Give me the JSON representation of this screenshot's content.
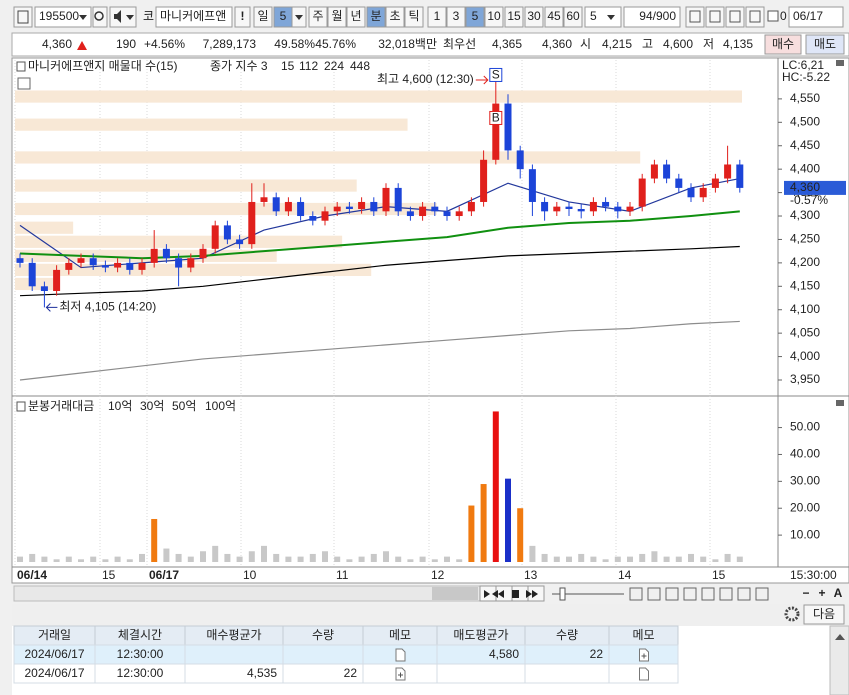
{
  "toolbar": {
    "code": "195500",
    "market": "코",
    "name": "마니커에프앤",
    "alert": "!",
    "period": "일",
    "period_n": "5",
    "units": [
      "주",
      "월",
      "년",
      "분",
      "초",
      "틱"
    ],
    "minutes": [
      "1",
      "3",
      "5",
      "10",
      "15",
      "30",
      "45",
      "60"
    ],
    "custom": "5",
    "count": "94/900",
    "check_label": "0",
    "date": "06/17"
  },
  "quote": {
    "price": "4,360",
    "change": "190",
    "change_pct": "+4.56%",
    "volume": "7,289,173",
    "ratio1": "49.58%",
    "ratio2": "45.76%",
    "amount": "32,018백만",
    "best_label": "최우선",
    "ask": "4,365",
    "bid": "4,360",
    "open_label": "시",
    "open": "4,215",
    "high_label": "고",
    "high": "4,600",
    "low_label": "저",
    "low": "4,135",
    "buy": "매수",
    "sell": "매도"
  },
  "price_chart": {
    "type": "candlestick",
    "legend_title": "마니커에프앤지 매물대 수(15)",
    "index_label": "종가 지수 3",
    "lc": "LC:6,21",
    "hc": "HC:-5.22",
    "last": "4,360",
    "last_change": "-0.57%",
    "high_note": "최고 4,600 (12:30)",
    "low_note": "최저 4,105 (14:20)",
    "sell_marker": "S",
    "buy_marker": "B",
    "ylim": [
      3918,
      4633
    ],
    "yticks": [
      {
        "value": 4550,
        "label": "4,550"
      },
      {
        "value": 4500,
        "label": "4,500"
      },
      {
        "value": 4450,
        "label": "4,450"
      },
      {
        "value": 4400,
        "label": "4,400"
      },
      {
        "value": 4350,
        "label": "4,350"
      },
      {
        "value": 4300,
        "label": "4,300"
      },
      {
        "value": 4250,
        "label": "4,250"
      },
      {
        "value": 4200,
        "label": "4,200"
      },
      {
        "value": 4150,
        "label": "4,150"
      },
      {
        "value": 4100,
        "label": "4,100"
      },
      {
        "value": 4050,
        "label": "4,050"
      },
      {
        "value": 4000,
        "label": "4,000"
      },
      {
        "value": 3950,
        "label": "3,950"
      }
    ],
    "up_color": "#e0201c",
    "down_color": "#1c44d8",
    "open": [
      4210,
      4200,
      4150,
      4140,
      4185,
      4200,
      4210,
      4195,
      4190,
      4200,
      4185,
      4200,
      4230,
      4210,
      4190,
      4210,
      4230,
      4280,
      4250,
      4240,
      4330,
      4340,
      4310,
      4330,
      4300,
      4290,
      4310,
      4320,
      4315,
      4330,
      4310,
      4360,
      4310,
      4300,
      4320,
      4310,
      4300,
      4310,
      4330,
      4420,
      4540,
      4440,
      4400,
      4330,
      4310,
      4320,
      4315,
      4310,
      4330,
      4320,
      4310,
      4320,
      4380,
      4410,
      4380,
      4360,
      4340,
      4360,
      4380,
      4410
    ],
    "high": [
      4220,
      4210,
      4160,
      4195,
      4210,
      4220,
      4220,
      4205,
      4210,
      4210,
      4210,
      4270,
      4240,
      4220,
      4220,
      4240,
      4290,
      4290,
      4260,
      4370,
      4370,
      4350,
      4340,
      4340,
      4310,
      4320,
      4330,
      4330,
      4340,
      4340,
      4370,
      4370,
      4320,
      4330,
      4330,
      4320,
      4320,
      4340,
      4440,
      4600,
      4560,
      4450,
      4410,
      4340,
      4330,
      4330,
      4325,
      4340,
      4340,
      4330,
      4330,
      4390,
      4420,
      4420,
      4390,
      4370,
      4370,
      4390,
      4450,
      4420
    ],
    "low": [
      4190,
      4140,
      4105,
      4130,
      4175,
      4190,
      4185,
      4180,
      4180,
      4175,
      4175,
      4190,
      4200,
      4150,
      4180,
      4200,
      4220,
      4240,
      4230,
      4230,
      4320,
      4300,
      4300,
      4290,
      4280,
      4280,
      4300,
      4305,
      4305,
      4300,
      4300,
      4300,
      4290,
      4290,
      4300,
      4290,
      4290,
      4300,
      4320,
      4410,
      4420,
      4380,
      4300,
      4290,
      4300,
      4300,
      4295,
      4300,
      4310,
      4295,
      4300,
      4310,
      4370,
      4370,
      4350,
      4330,
      4330,
      4350,
      4370,
      4350
    ],
    "close": [
      4200,
      4150,
      4140,
      4185,
      4200,
      4210,
      4195,
      4190,
      4200,
      4185,
      4200,
      4230,
      4210,
      4190,
      4210,
      4230,
      4280,
      4250,
      4240,
      4330,
      4340,
      4310,
      4330,
      4300,
      4290,
      4310,
      4320,
      4315,
      4330,
      4310,
      4360,
      4310,
      4300,
      4320,
      4310,
      4300,
      4310,
      4330,
      4420,
      4540,
      4440,
      4400,
      4330,
      4310,
      4320,
      4315,
      4310,
      4330,
      4320,
      4310,
      4320,
      4380,
      4410,
      4380,
      4360,
      4340,
      4360,
      4380,
      4410,
      4360
    ],
    "moving_averages": [
      {
        "name": "15",
        "color": "#23389c",
        "x": [
          0,
          5,
          10,
          15,
          20,
          25,
          30,
          35,
          40,
          45,
          50,
          55,
          59
        ],
        "values": [
          4280,
          4190,
          4200,
          4210,
          4270,
          4300,
          4320,
          4310,
          4370,
          4330,
          4310,
          4360,
          4380
        ]
      },
      {
        "name": "112",
        "color": "#109010",
        "x": [
          0,
          5,
          10,
          15,
          20,
          25,
          30,
          35,
          40,
          45,
          50,
          55,
          59
        ],
        "values": [
          4220,
          4215,
          4210,
          4215,
          4225,
          4235,
          4245,
          4255,
          4275,
          4285,
          4290,
          4300,
          4310
        ]
      },
      {
        "name": "224",
        "color": "#000000",
        "x": [
          0,
          5,
          10,
          15,
          20,
          25,
          30,
          35,
          40,
          45,
          50,
          55,
          59
        ],
        "values": [
          4130,
          4135,
          4140,
          4150,
          4165,
          4180,
          4195,
          4205,
          4215,
          4220,
          4225,
          4230,
          4235
        ]
      },
      {
        "name": "448",
        "color": "#8c8c8c",
        "x": [
          0,
          5,
          10,
          15,
          20,
          25,
          30,
          35,
          40,
          45,
          50,
          55,
          59
        ],
        "values": [
          3950,
          3965,
          3980,
          3995,
          4005,
          4015,
          4025,
          4035,
          4045,
          4055,
          4060,
          4070,
          4075
        ]
      }
    ],
    "volume_profile": {
      "color": "#f8e8d6",
      "prices": [
        4555,
        4495,
        4425,
        4365,
        4315,
        4275,
        4245,
        4215,
        4185,
        4155
      ],
      "values": [
        100,
        54,
        86,
        47,
        58,
        8,
        45,
        36,
        49,
        6
      ]
    }
  },
  "volume_chart": {
    "type": "bar",
    "title": "분봉거래대금",
    "ylim": [
      0,
      61
    ],
    "yticks": [
      {
        "value": 50,
        "label": "50.00"
      },
      {
        "value": 40,
        "label": "40.00"
      },
      {
        "value": 30,
        "label": "30.00"
      },
      {
        "value": 20,
        "label": "20.00"
      },
      {
        "value": 10,
        "label": "10.00"
      }
    ],
    "base_color": "#c8c8c8",
    "thresholds": [
      {
        "label": "10억",
        "value": 10,
        "color": "#f07a10"
      },
      {
        "label": "30억",
        "value": 30,
        "color": "#1a2fc8"
      },
      {
        "label": "50억",
        "value": 50,
        "color": "#e81010"
      },
      {
        "label": "100억",
        "value": 100,
        "color": "#000000"
      }
    ],
    "values": [
      2,
      3,
      2,
      1,
      2,
      1,
      2,
      1,
      2,
      1,
      3,
      16,
      5,
      3,
      2,
      4,
      6,
      3,
      2,
      4,
      6,
      3,
      2,
      2,
      3,
      4,
      2,
      1,
      2,
      3,
      4,
      2,
      1,
      2,
      1,
      2,
      1,
      21,
      29,
      56,
      31,
      20,
      6,
      3,
      2,
      2,
      3,
      2,
      1,
      2,
      2,
      3,
      4,
      2,
      2,
      3,
      2,
      1,
      3,
      2
    ]
  },
  "time_axis": {
    "labels": [
      "06/14",
      "15",
      "06/17",
      "10",
      "11",
      "12",
      "13",
      "14",
      "15"
    ],
    "end": "15:30:00"
  },
  "controls": {
    "zoom": [
      "−",
      "+",
      "A"
    ],
    "next": "다음"
  },
  "table": {
    "headers": [
      "거래일",
      "체결시간",
      "매수평균가",
      "수량",
      "메모",
      "매도평균가",
      "수량",
      "메모"
    ],
    "rows": [
      [
        "2024/06/17",
        "12:30:00",
        null,
        null,
        null,
        "4,580",
        "22",
        null
      ],
      [
        "2024/06/17",
        "12:30:00",
        "4,535",
        "22",
        null,
        null,
        null,
        null
      ]
    ]
  }
}
